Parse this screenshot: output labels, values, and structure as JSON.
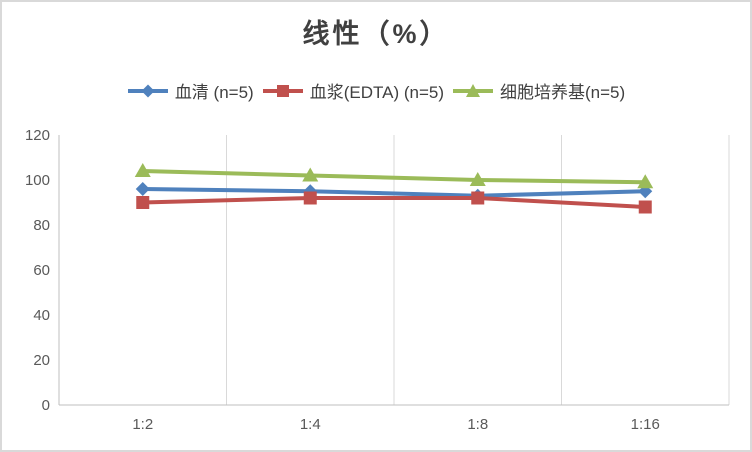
{
  "window": {
    "background": "#FFFFFF",
    "border_color": "#D9D9D9"
  },
  "chart_data": {
    "type": "line",
    "title": "线性（%）",
    "categories": [
      "1:2",
      "1:4",
      "1:8",
      "1:16"
    ],
    "series": [
      {
        "name": "血清 (n=5)",
        "marker": "diamond",
        "color": "#4F81BD",
        "values": [
          96,
          95,
          93,
          95
        ]
      },
      {
        "name": "血浆(EDTA) (n=5)",
        "marker": "square",
        "color": "#C0504D",
        "values": [
          90,
          92,
          92,
          88
        ]
      },
      {
        "name": "细胞培养基(n=5)",
        "marker": "triangle",
        "color": "#9BBB59",
        "values": [
          104,
          102,
          100,
          99
        ]
      }
    ],
    "ylim": [
      0,
      120
    ],
    "ytick_step": 20,
    "ytick_labels": [
      "0",
      "20",
      "40",
      "60",
      "80",
      "100",
      "120"
    ],
    "grid": "vertical-between-categories",
    "legend_position": "top",
    "colors": {
      "axis_line": "#BFBFBF",
      "gridline": "#D9D9D9",
      "tick_label": "#595959",
      "title": "#404040",
      "legend_text": "#404040"
    }
  }
}
